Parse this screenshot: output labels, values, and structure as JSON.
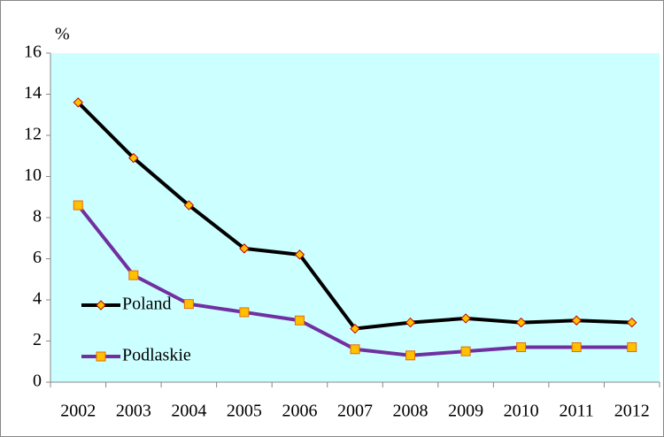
{
  "chart_data": {
    "type": "line",
    "y_label": "%",
    "categories": [
      "2002",
      "2003",
      "2004",
      "2005",
      "2006",
      "2007",
      "2008",
      "2009",
      "2010",
      "2011",
      "2012"
    ],
    "series": [
      {
        "name": "Poland",
        "color": "#000000",
        "marker": "diamond",
        "marker_color": "#ffc000",
        "marker_stroke": "#c00000",
        "values": [
          13.6,
          10.9,
          8.6,
          6.5,
          6.2,
          2.6,
          2.9,
          3.1,
          2.9,
          3.0,
          2.9
        ]
      },
      {
        "name": "Podlaskie",
        "color": "#7030a0",
        "marker": "square",
        "marker_color": "#ffc000",
        "marker_stroke": "#e46c0a",
        "values": [
          8.6,
          5.2,
          3.8,
          3.4,
          3.0,
          1.6,
          1.3,
          1.5,
          1.7,
          1.7,
          1.7
        ]
      }
    ],
    "ylim": [
      0,
      16
    ],
    "yticks": [
      0,
      2,
      4,
      6,
      8,
      10,
      12,
      14,
      16
    ],
    "grid": false,
    "legend": "left",
    "plot_background": "#ccffff"
  }
}
